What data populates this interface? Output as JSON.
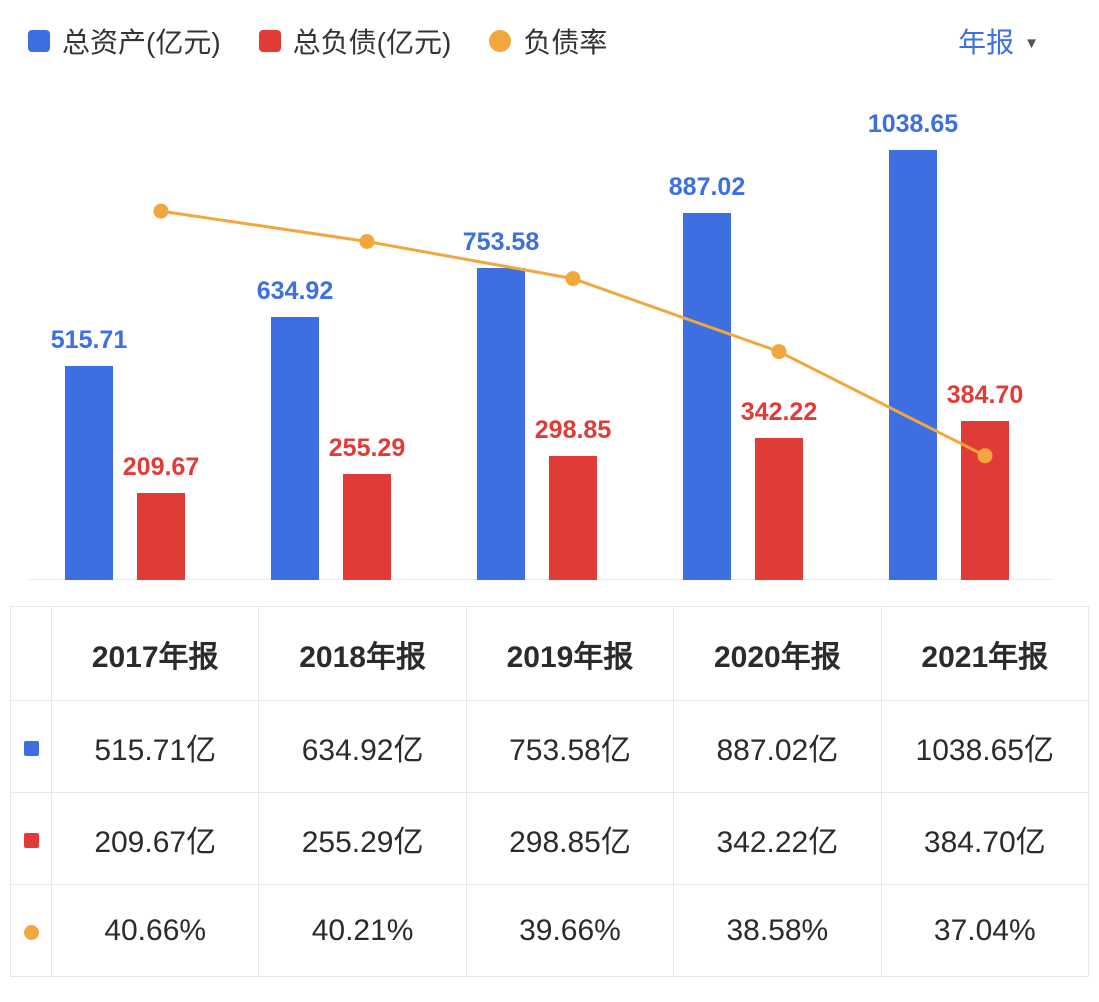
{
  "legend": {
    "items": [
      {
        "label": "总资产(亿元)",
        "color": "#3d6fe0",
        "shape": "square"
      },
      {
        "label": "总负债(亿元)",
        "color": "#e13b38",
        "shape": "square"
      },
      {
        "label": "负债率",
        "color": "#f2a73e",
        "shape": "circle"
      }
    ]
  },
  "period_selector": {
    "label": "年报",
    "color": "#3d6fe0"
  },
  "chart_data": {
    "type": "bar",
    "categories": [
      "2017年报",
      "2018年报",
      "2019年报",
      "2020年报",
      "2021年报"
    ],
    "series": [
      {
        "name": "总资产(亿元)",
        "type": "bar",
        "color": "#3d6fe0",
        "values": [
          515.71,
          634.92,
          753.58,
          887.02,
          1038.65
        ]
      },
      {
        "name": "总负债(亿元)",
        "type": "bar",
        "color": "#e13b38",
        "values": [
          209.67,
          255.29,
          298.85,
          342.22,
          384.7
        ]
      },
      {
        "name": "负债率",
        "type": "line",
        "color": "#f2a73e",
        "unit": "%",
        "values": [
          40.66,
          40.21,
          39.66,
          38.58,
          37.04
        ]
      }
    ],
    "title": "",
    "xlabel": "",
    "ylabel": "",
    "bar_value_labels": true,
    "grid": false,
    "legend_position": "top",
    "line_axis_range": [
      35.2,
      42.6
    ]
  },
  "table": {
    "header": [
      "",
      "2017年报",
      "2018年报",
      "2019年报",
      "2020年报",
      "2021年报"
    ],
    "rows": [
      {
        "marker": {
          "color": "#3d6fe0",
          "shape": "square"
        },
        "cells": [
          "515.71亿",
          "634.92亿",
          "753.58亿",
          "887.02亿",
          "1038.65亿"
        ]
      },
      {
        "marker": {
          "color": "#e13b38",
          "shape": "square"
        },
        "cells": [
          "209.67亿",
          "255.29亿",
          "298.85亿",
          "342.22亿",
          "384.70亿"
        ]
      },
      {
        "marker": {
          "color": "#f2a73e",
          "shape": "circle"
        },
        "cells": [
          "40.66%",
          "40.21%",
          "39.66%",
          "38.58%",
          "37.04%"
        ]
      }
    ]
  }
}
